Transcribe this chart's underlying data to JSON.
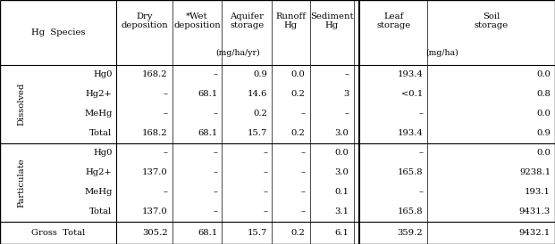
{
  "col_header_labels": [
    "Dry\ndeposition",
    "*Wet\ndeposition",
    "Aquifer\nstorage",
    "Runoff\nHg",
    "Sediment\nHg",
    "Leaf\nstorage",
    "Soil\nstorage"
  ],
  "unit_mghayr": "(mg/ha/yr)",
  "unit_mgha": "(mg/ha)",
  "hg_species_label": "Hg  Species",
  "sections": [
    {
      "label": "Dissolved",
      "rows": [
        [
          "Hg0",
          "168.2",
          "–",
          "0.9",
          "0.0",
          "–",
          "193.4",
          "0.0"
        ],
        [
          "Hg2+",
          "–",
          "68.1",
          "14.6",
          "0.2",
          "3",
          "<0.1",
          "0.8"
        ],
        [
          "MeHg",
          "–",
          "–",
          "0.2",
          "–",
          "–",
          "–",
          "0.0"
        ],
        [
          "Total",
          "168.2",
          "68.1",
          "15.7",
          "0.2",
          "3.0",
          "193.4",
          "0.9"
        ]
      ]
    },
    {
      "label": "Particulate",
      "rows": [
        [
          "Hg0",
          "–",
          "–",
          "–",
          "–",
          "0.0",
          "–",
          "0.0"
        ],
        [
          "Hg2+",
          "137.0",
          "–",
          "–",
          "–",
          "3.0",
          "165.8",
          "9238.1"
        ],
        [
          "MeHg",
          "–",
          "–",
          "–",
          "–",
          "0.1",
          "–",
          "193.1"
        ],
        [
          "Total",
          "137.0",
          "–",
          "–",
          "–",
          "3.1",
          "165.8",
          "9431.3"
        ]
      ]
    }
  ],
  "gross_total_label": "Gross  Total",
  "gross_total_values": [
    "305.2",
    "68.1",
    "15.7",
    "0.2",
    "6.1",
    "359.2",
    "9432.1"
  ],
  "font_size": 7.2,
  "font_family": "DejaVu Serif"
}
